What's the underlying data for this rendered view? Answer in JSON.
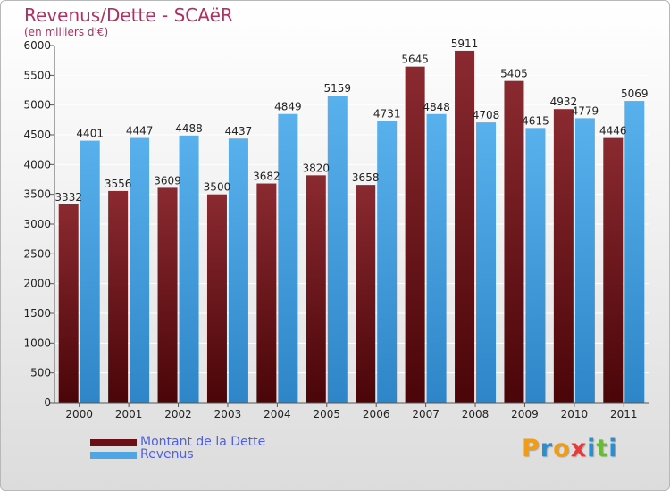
{
  "header": {
    "title": "Revenus/Dette - SCAëR",
    "subtitle": "(en milliers d'€)"
  },
  "colors": {
    "debt": "#7a1c22",
    "debt_dark": "#4a0508",
    "revenue": "#4fa6e4",
    "revenue_dark": "#2e86c8",
    "title": "#b03060",
    "legend_text": "#4f5fe0"
  },
  "chart_data": {
    "type": "bar",
    "title": "Revenus/Dette - SCAëR",
    "subtitle": "(en milliers d'€)",
    "xlabel": "",
    "ylabel": "",
    "ylim": [
      0,
      6000
    ],
    "yticks": [
      0,
      500,
      1000,
      1500,
      2000,
      2500,
      3000,
      3500,
      4000,
      4500,
      5000,
      5500,
      6000
    ],
    "grid": true,
    "legend_position": "bottom-left",
    "categories": [
      "2000",
      "2001",
      "2002",
      "2003",
      "2004",
      "2005",
      "2006",
      "2007",
      "2008",
      "2009",
      "2010",
      "2011"
    ],
    "series": [
      {
        "name": "Montant de la Dette",
        "key": "debt",
        "values": [
          3332,
          3556,
          3609,
          3500,
          3682,
          3820,
          3658,
          5645,
          5911,
          5405,
          4932,
          4446
        ]
      },
      {
        "name": "Revenus",
        "key": "revenue",
        "values": [
          4401,
          4447,
          4488,
          4437,
          4849,
          5159,
          4731,
          4848,
          4708,
          4615,
          4779,
          5069
        ]
      }
    ]
  },
  "legend": {
    "items": [
      {
        "label": "Montant de la Dette",
        "color_key": "debt"
      },
      {
        "label": "Revenus",
        "color_key": "revenue"
      }
    ]
  },
  "brand": {
    "name": "Proxiti",
    "letters": [
      "P",
      "r",
      "o",
      "x",
      "i",
      "t",
      "i"
    ],
    "letter_colors": [
      "#f39c12",
      "#2a8fd0",
      "#f39c12",
      "#e23c3c",
      "#2a8fd0",
      "#6aba3a",
      "#2a8fd0"
    ]
  }
}
